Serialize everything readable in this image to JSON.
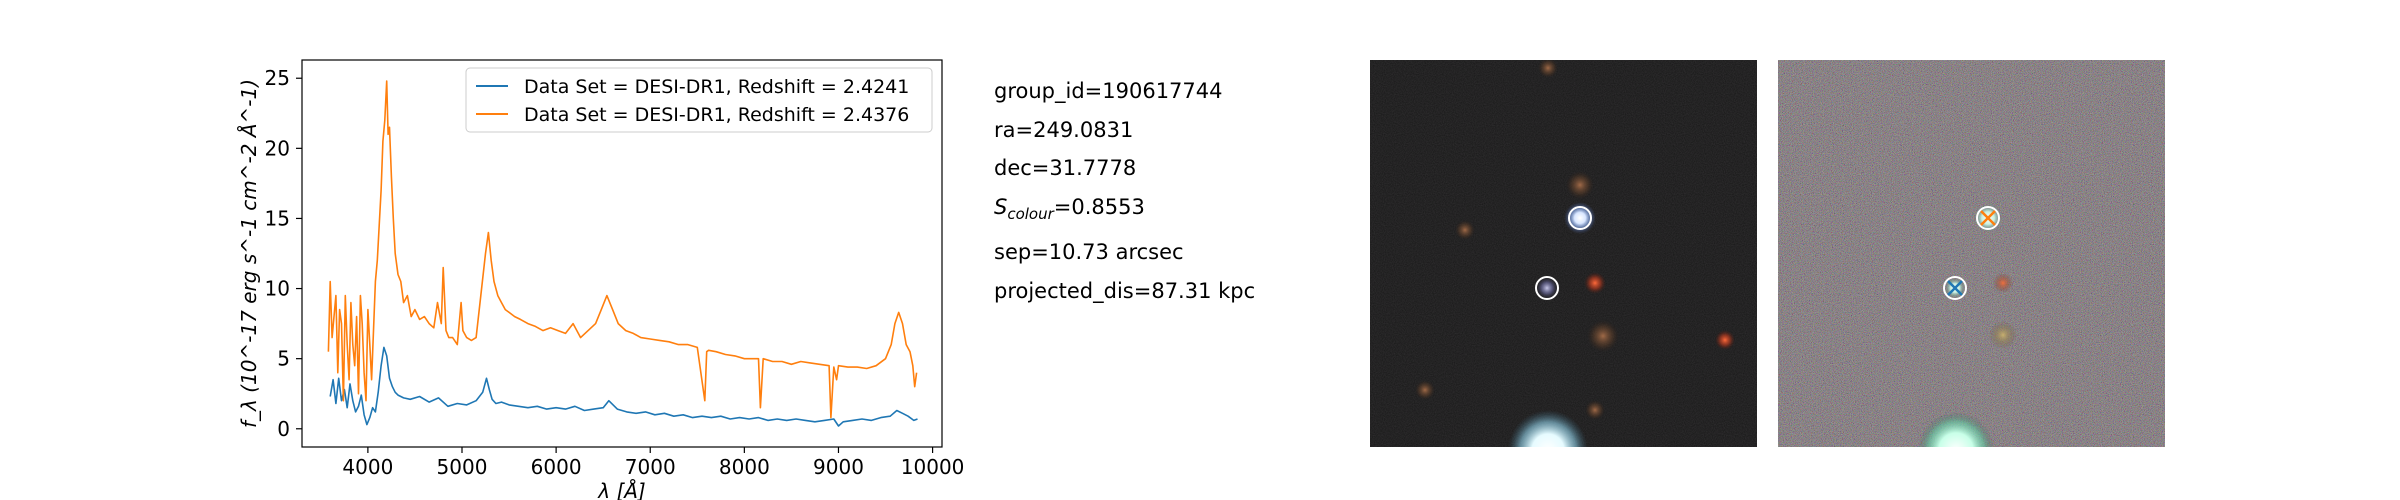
{
  "chart_data": {
    "type": "line",
    "xlabel": "λ [Å]",
    "ylabel": "f_λ (10^-17 erg s^-1 cm^-2 Å^-1)",
    "xlim": [
      3300,
      10100
    ],
    "ylim": [
      -1.3,
      26.3
    ],
    "xticks": [
      4000,
      5000,
      6000,
      7000,
      8000,
      9000,
      10000
    ],
    "yticks": [
      0,
      5,
      10,
      15,
      20,
      25
    ],
    "grid": false,
    "legend_position": "top-right",
    "series": [
      {
        "name": "Data Set = DESI-DR1, Redshift = 2.4241",
        "color": "#1f77b4",
        "x": [
          3600,
          3630,
          3660,
          3690,
          3720,
          3750,
          3780,
          3810,
          3840,
          3870,
          3900,
          3930,
          3960,
          3990,
          4020,
          4050,
          4080,
          4110,
          4140,
          4170,
          4200,
          4230,
          4260,
          4290,
          4320,
          4380,
          4450,
          4550,
          4650,
          4750,
          4850,
          4950,
          5050,
          5150,
          5220,
          5260,
          5290,
          5320,
          5360,
          5420,
          5500,
          5600,
          5700,
          5800,
          5900,
          6000,
          6100,
          6200,
          6300,
          6400,
          6500,
          6560,
          6650,
          6750,
          6850,
          6950,
          7050,
          7150,
          7250,
          7350,
          7450,
          7550,
          7650,
          7750,
          7850,
          7950,
          8050,
          8150,
          8250,
          8350,
          8450,
          8550,
          8650,
          8750,
          8850,
          8950,
          9000,
          9050,
          9150,
          9250,
          9350,
          9450,
          9550,
          9620,
          9680,
          9740,
          9800,
          9840
        ],
        "y": [
          2.3,
          3.5,
          1.8,
          3.6,
          2.0,
          2.8,
          1.5,
          3.2,
          2.0,
          1.2,
          1.6,
          2.4,
          1.0,
          0.3,
          0.8,
          1.5,
          1.2,
          2.6,
          4.5,
          5.8,
          5.2,
          3.6,
          3.0,
          2.6,
          2.4,
          2.2,
          2.1,
          2.3,
          1.9,
          2.2,
          1.6,
          1.8,
          1.7,
          2.0,
          2.6,
          3.6,
          2.8,
          2.1,
          1.8,
          1.9,
          1.7,
          1.6,
          1.5,
          1.6,
          1.4,
          1.5,
          1.4,
          1.6,
          1.3,
          1.4,
          1.5,
          2.0,
          1.4,
          1.2,
          1.1,
          1.2,
          1.0,
          1.1,
          0.9,
          1.0,
          0.8,
          0.9,
          0.8,
          0.9,
          0.7,
          0.8,
          0.7,
          0.8,
          0.6,
          0.7,
          0.6,
          0.7,
          0.6,
          0.5,
          0.6,
          0.7,
          0.2,
          0.5,
          0.6,
          0.7,
          0.6,
          0.8,
          0.9,
          1.3,
          1.1,
          0.9,
          0.6,
          0.7
        ]
      },
      {
        "name": "Data Set = DESI-DR1, Redshift = 2.4376",
        "color": "#ff7f0e",
        "x": [
          3580,
          3600,
          3620,
          3640,
          3660,
          3680,
          3700,
          3720,
          3740,
          3760,
          3780,
          3800,
          3820,
          3840,
          3860,
          3880,
          3900,
          3920,
          3940,
          3960,
          3980,
          4000,
          4020,
          4040,
          4060,
          4080,
          4100,
          4120,
          4140,
          4160,
          4180,
          4200,
          4215,
          4230,
          4250,
          4270,
          4290,
          4320,
          4350,
          4380,
          4420,
          4460,
          4500,
          4550,
          4600,
          4650,
          4700,
          4740,
          4780,
          4800,
          4830,
          4860,
          4900,
          4950,
          4990,
          5010,
          5050,
          5100,
          5150,
          5200,
          5250,
          5280,
          5310,
          5340,
          5380,
          5420,
          5460,
          5500,
          5560,
          5620,
          5700,
          5780,
          5860,
          5940,
          6020,
          6100,
          6180,
          6260,
          6340,
          6420,
          6480,
          6540,
          6600,
          6660,
          6740,
          6820,
          6900,
          7000,
          7100,
          7200,
          7300,
          7400,
          7500,
          7580,
          7600,
          7620,
          7700,
          7800,
          7900,
          8000,
          8100,
          8150,
          8170,
          8200,
          8300,
          8400,
          8500,
          8600,
          8700,
          8800,
          8900,
          8920,
          8950,
          8980,
          9000,
          9100,
          9200,
          9300,
          9400,
          9500,
          9560,
          9600,
          9640,
          9680,
          9720,
          9760,
          9790,
          9810,
          9830
        ],
        "y": [
          5.5,
          10.5,
          6.5,
          8.0,
          9.5,
          4.0,
          8.5,
          7.5,
          2.0,
          9.5,
          6.0,
          3.5,
          9.0,
          6.0,
          4.5,
          8.0,
          2.5,
          9.5,
          7.5,
          4.0,
          2.0,
          8.5,
          6.0,
          3.5,
          7.0,
          10.5,
          12.0,
          14.5,
          17.0,
          20.5,
          22.0,
          24.8,
          21.0,
          21.5,
          18.0,
          15.0,
          12.5,
          11.0,
          10.5,
          9.0,
          9.5,
          8.0,
          8.5,
          7.8,
          8.0,
          7.5,
          7.2,
          9.0,
          7.5,
          11.5,
          7.0,
          6.5,
          6.5,
          6.0,
          9.0,
          7.0,
          6.5,
          6.3,
          6.5,
          9.5,
          12.5,
          14.0,
          12.0,
          10.5,
          9.5,
          9.0,
          8.5,
          8.3,
          8.0,
          7.8,
          7.5,
          7.3,
          7.0,
          7.2,
          7.0,
          6.8,
          7.5,
          6.5,
          7.0,
          7.5,
          8.5,
          9.5,
          8.5,
          7.5,
          7.0,
          6.8,
          6.5,
          6.4,
          6.3,
          6.2,
          6.0,
          6.0,
          5.8,
          2.0,
          5.5,
          5.6,
          5.5,
          5.3,
          5.2,
          5.0,
          5.0,
          5.0,
          1.5,
          5.0,
          4.8,
          4.8,
          4.6,
          4.8,
          4.7,
          4.6,
          4.5,
          0.8,
          4.4,
          3.5,
          4.5,
          4.4,
          4.4,
          4.3,
          4.5,
          5.0,
          6.0,
          7.5,
          8.3,
          7.5,
          6.0,
          5.5,
          4.5,
          3.0,
          4.0
        ]
      }
    ]
  },
  "info": {
    "group_id": "group_id=190617744",
    "ra": "ra=249.0831",
    "dec": "dec=31.7778",
    "s_colour_prefix": "S",
    "s_colour_sub": "colour",
    "s_colour_value": "=0.8553",
    "sep": "sep=10.73 arcsec",
    "projected_dis": "projected_dis=87.31 kpc"
  },
  "colors": {
    "cutout_dark_bg": "#161616",
    "cutout_noisy_bg": "#5a5552",
    "marker_circle": "#ffffff",
    "marker_cross": "#ff7f0e",
    "marker_cross_alt": "#1f77b4"
  }
}
